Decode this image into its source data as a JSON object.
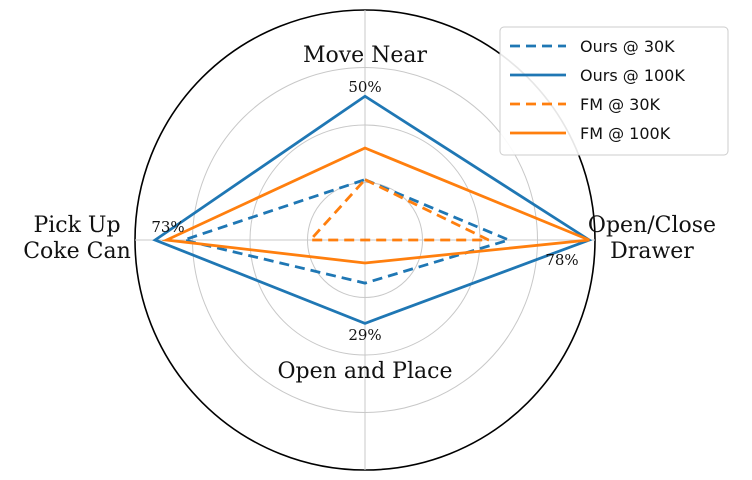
{
  "chart_data": {
    "type": "radar",
    "axes": [
      {
        "label_lines": [
          "Move Near"
        ],
        "peak_label": "50%"
      },
      {
        "label_lines": [
          "Open/Close",
          "Drawer"
        ],
        "peak_label": "78%"
      },
      {
        "label_lines": [
          "Open and Place"
        ],
        "peak_label": "29%"
      },
      {
        "label_lines": [
          "Pick Up",
          "Coke Can"
        ],
        "peak_label": "73%"
      }
    ],
    "rmax": 0.8,
    "grid_levels": [
      0.2,
      0.4,
      0.6,
      0.8
    ],
    "series": [
      {
        "name": "Ours @ 30K",
        "color": "#1f77b4",
        "dashed": true,
        "values": [
          0.21,
          0.5,
          0.15,
          0.63
        ]
      },
      {
        "name": "Ours @ 100K",
        "color": "#1f77b4",
        "dashed": false,
        "values": [
          0.5,
          0.78,
          0.29,
          0.73
        ]
      },
      {
        "name": "FM @ 30K",
        "color": "#ff7f0e",
        "dashed": true,
        "values": [
          0.21,
          0.43,
          0.0,
          0.19
        ]
      },
      {
        "name": "FM @ 100K",
        "color": "#ff7f0e",
        "dashed": false,
        "values": [
          0.32,
          0.78,
          0.08,
          0.69
        ]
      }
    ],
    "legend_position": "top-right",
    "grid": true
  }
}
